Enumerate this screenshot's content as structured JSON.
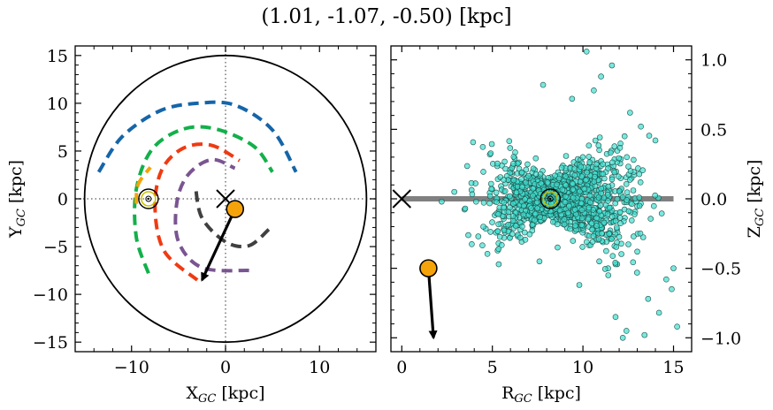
{
  "figure": {
    "title": "(1.01, -1.07, -0.50) [kpc]"
  },
  "colors": {
    "arm_blue": "#1565a8",
    "arm_green": "#12b04a",
    "arm_red": "#f03a12",
    "arm_purple": "#7a5591",
    "arm_dark": "#404040",
    "arm_orange": "#f5a30a",
    "target": "#f5a30a",
    "cloud_fill": "#40e0d0",
    "sun_ring": "#c8c200",
    "z_band": "#808080"
  },
  "chart_data": [
    {
      "type": "line",
      "panel": "left",
      "title": "",
      "xlabel": "X_GC [kpc]",
      "ylabel": "Y_GC [kpc]",
      "xlim": [
        -16,
        16
      ],
      "ylim": [
        -16,
        16
      ],
      "xticks": [
        -10,
        0,
        10
      ],
      "yticks": [
        15,
        10,
        5,
        0,
        -5,
        -10,
        -15
      ],
      "xtick_labels": [
        "−10",
        "0",
        "10"
      ],
      "ytick_labels": [
        "15",
        "10",
        "5",
        "0",
        "−5",
        "−10",
        "−15"
      ],
      "grid": false,
      "reference_lines": {
        "x": 0,
        "y": 0,
        "style": "dotted"
      },
      "boundary_circle_radius": 15,
      "spiral_arms": [
        {
          "color": "arm_blue",
          "points": [
            [
              -13.5,
              2.8
            ],
            [
              -11,
              6.5
            ],
            [
              -7,
              9.2
            ],
            [
              -3,
              10.0
            ],
            [
              1,
              9.8
            ],
            [
              5,
              7.2
            ],
            [
              7.5,
              2.8
            ]
          ]
        },
        {
          "color": "arm_green",
          "points": [
            [
              -8.2,
              -7.8
            ],
            [
              -9.5,
              -4
            ],
            [
              -9.5,
              1
            ],
            [
              -7.8,
              5.2
            ],
            [
              -4.5,
              7.3
            ],
            [
              -1,
              7.3
            ],
            [
              3,
              5.5
            ],
            [
              5,
              2.8
            ]
          ]
        },
        {
          "color": "arm_red",
          "points": [
            [
              -3,
              -8.5
            ],
            [
              -6.5,
              -5.5
            ],
            [
              -7.5,
              -1
            ],
            [
              -6.8,
              3
            ],
            [
              -4.5,
              5.3
            ],
            [
              -1.5,
              5.6
            ],
            [
              1.5,
              4
            ]
          ]
        },
        {
          "color": "arm_purple",
          "points": [
            [
              2.5,
              -7.5
            ],
            [
              -2.5,
              -7.2
            ],
            [
              -5,
              -4.5
            ],
            [
              -5.2,
              -0.5
            ],
            [
              -4,
              2.5
            ],
            [
              -1.5,
              4.1
            ],
            [
              1,
              3.2
            ]
          ]
        },
        {
          "color": "arm_dark",
          "points": [
            [
              4.6,
              -3.2
            ],
            [
              2.5,
              -4.9
            ],
            [
              0,
              -4.5
            ],
            [
              -2.5,
              -2
            ],
            [
              -3.2,
              1.3
            ]
          ]
        },
        {
          "color": "arm_orange",
          "points": [
            [
              -9.5,
              -0.5
            ],
            [
              -9.3,
              1.5
            ],
            [
              -8,
              3.3
            ]
          ]
        }
      ],
      "galactic_center": {
        "x": 0,
        "y": 0,
        "marker": "x"
      },
      "sun": {
        "x": -8.2,
        "y": 0.0,
        "marker": "circled-dot"
      },
      "target": {
        "x": 1.01,
        "y": -1.07,
        "marker": "circle"
      },
      "velocity_arrow": {
        "from": [
          1.01,
          -1.07
        ],
        "to": [
          -2.5,
          -8.5
        ]
      }
    },
    {
      "type": "scatter",
      "panel": "right",
      "title": "",
      "xlabel": "R_GC [kpc]",
      "ylabel": "Z_GC [kpc]",
      "xlim": [
        -0.6,
        16
      ],
      "ylim": [
        -1.1,
        1.1
      ],
      "xticks": [
        0,
        5,
        10,
        15
      ],
      "yticks": [
        1.0,
        0.5,
        0.0,
        -0.5,
        -1.0
      ],
      "xtick_labels": [
        "0",
        "5",
        "10",
        "15"
      ],
      "ytick_labels": [
        "1.0",
        "0.5",
        "0.0",
        "−0.5",
        "−1.0"
      ],
      "yaxis_side": "right",
      "grid": false,
      "disk_band": {
        "x": [
          0,
          15
        ],
        "z": 0
      },
      "galactic_center": {
        "x": 0,
        "y": 0,
        "marker": "x"
      },
      "sun": {
        "x": 8.2,
        "y": 0.0,
        "marker": "circled-dot"
      },
      "target": {
        "x": 1.47,
        "y": -0.5,
        "marker": "circle"
      },
      "velocity_arrow": {
        "from": [
          1.47,
          -0.5
        ],
        "to": [
          1.75,
          -1.0
        ]
      },
      "cloud": {
        "n": 1400,
        "r_min": 3,
        "r_max": 15.5,
        "r_center": 8.8,
        "r_spread": 2.0,
        "z_spread_at_center": 0.08,
        "z_flare_per_kpc": 0.045
      },
      "outliers": [
        [
          10.2,
          1.06
        ],
        [
          11.6,
          0.96
        ],
        [
          7.8,
          0.82
        ],
        [
          10.6,
          0.78
        ],
        [
          9.4,
          0.72
        ],
        [
          14.0,
          0.42
        ],
        [
          13.2,
          0.52
        ],
        [
          12.6,
          0.62
        ],
        [
          11.0,
          0.88
        ],
        [
          12.3,
          0.45
        ],
        [
          2.2,
          -0.02
        ],
        [
          2.9,
          0.05
        ],
        [
          3.5,
          -0.07
        ],
        [
          7.6,
          -0.45
        ],
        [
          9.8,
          -0.62
        ],
        [
          11.8,
          -0.85
        ],
        [
          12.4,
          -0.95
        ],
        [
          13.6,
          -0.72
        ],
        [
          14.2,
          -0.82
        ],
        [
          15.2,
          -0.92
        ],
        [
          14.6,
          -0.58
        ],
        [
          15.0,
          -0.5
        ],
        [
          13.0,
          -0.38
        ],
        [
          12.2,
          -1.0
        ],
        [
          13.4,
          -0.98
        ],
        [
          14.9,
          -0.65
        ],
        [
          11.4,
          -0.55
        ],
        [
          8.6,
          -0.35
        ],
        [
          10.9,
          -0.45
        ]
      ]
    }
  ]
}
